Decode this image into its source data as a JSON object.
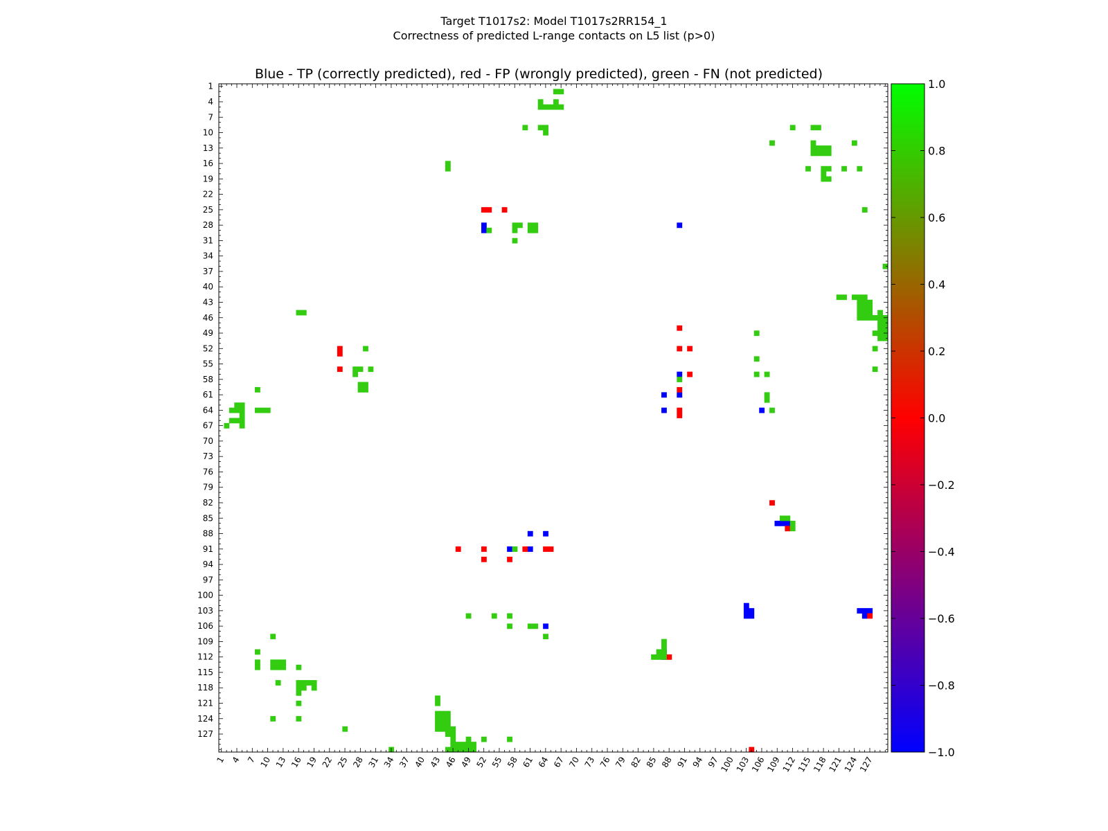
{
  "chart_data": {
    "type": "heatmap",
    "suptitle": [
      "Target T1017s2: Model T1017s2RR154_1",
      "Correctness of predicted L-range contacts on L5 list (p>0)"
    ],
    "title": "Blue - TP (correctly predicted), red - FP (wrongly predicted), green - FN (not predicted)",
    "xlabel": "",
    "ylabel": "",
    "xlim": [
      1,
      130
    ],
    "ylim": [
      1,
      130
    ],
    "x_ticks": [
      1,
      4,
      7,
      10,
      13,
      16,
      19,
      22,
      25,
      28,
      31,
      34,
      37,
      40,
      43,
      46,
      49,
      52,
      55,
      58,
      61,
      64,
      67,
      70,
      73,
      76,
      79,
      82,
      85,
      88,
      91,
      94,
      97,
      100,
      103,
      106,
      109,
      112,
      115,
      118,
      121,
      124,
      127
    ],
    "y_ticks": [
      1,
      4,
      7,
      10,
      13,
      16,
      19,
      22,
      25,
      28,
      31,
      34,
      37,
      40,
      43,
      46,
      49,
      52,
      55,
      58,
      61,
      64,
      67,
      70,
      73,
      76,
      79,
      82,
      85,
      88,
      91,
      94,
      97,
      100,
      103,
      106,
      109,
      112,
      115,
      118,
      121,
      124,
      127
    ],
    "colorbar": {
      "range": [
        -1.0,
        1.0
      ],
      "ticks": [
        "1.0",
        "0.8",
        "0.6",
        "0.4",
        "0.2",
        "0.0",
        "−0.2",
        "−0.4",
        "−0.6",
        "−0.8",
        "−1.0"
      ],
      "colors": [
        "#0000ff",
        "#ff0000",
        "#00ff00"
      ]
    },
    "category_colors": {
      "TP": "#0000ff",
      "FP": "#ff0000",
      "FN": "#33cc11"
    },
    "categories": [
      "TP",
      "FP",
      "FN"
    ],
    "cells": {
      "TP": [
        [
          28,
          52
        ],
        [
          28,
          90
        ],
        [
          29,
          52
        ],
        [
          57,
          90
        ],
        [
          61,
          87
        ],
        [
          61,
          90
        ],
        [
          64,
          87
        ],
        [
          64,
          106
        ],
        [
          86,
          109
        ],
        [
          86,
          110
        ],
        [
          86,
          111
        ],
        [
          88,
          61
        ],
        [
          88,
          64
        ],
        [
          91,
          57
        ],
        [
          91,
          61
        ],
        [
          102,
          103
        ],
        [
          103,
          103
        ],
        [
          103,
          104
        ],
        [
          104,
          103
        ],
        [
          104,
          104
        ],
        [
          103,
          125
        ],
        [
          103,
          126
        ],
        [
          103,
          127
        ],
        [
          104,
          126
        ],
        [
          106,
          64
        ],
        [
          111,
          87
        ],
        [
          112,
          87
        ]
      ],
      "FP": [
        [
          25,
          52
        ],
        [
          25,
          53
        ],
        [
          25,
          56
        ],
        [
          48,
          90
        ],
        [
          52,
          24
        ],
        [
          53,
          24
        ],
        [
          52,
          90
        ],
        [
          52,
          92
        ],
        [
          56,
          24
        ],
        [
          57,
          92
        ],
        [
          60,
          90
        ],
        [
          64,
          90
        ],
        [
          65,
          90
        ],
        [
          82,
          108
        ],
        [
          87,
          111
        ],
        [
          91,
          47
        ],
        [
          91,
          52
        ],
        [
          91,
          60
        ],
        [
          91,
          64
        ],
        [
          91,
          65
        ],
        [
          93,
          52
        ],
        [
          93,
          57
        ],
        [
          104,
          127
        ],
        [
          112,
          88
        ],
        [
          130,
          104
        ]
      ],
      "FN": [
        [
          2,
          66
        ],
        [
          2,
          67
        ],
        [
          4,
          63
        ],
        [
          4,
          66
        ],
        [
          5,
          63
        ],
        [
          5,
          64
        ],
        [
          5,
          65
        ],
        [
          5,
          66
        ],
        [
          5,
          67
        ],
        [
          9,
          60
        ],
        [
          9,
          63
        ],
        [
          9,
          64
        ],
        [
          10,
          64
        ],
        [
          9,
          112
        ],
        [
          9,
          116
        ],
        [
          9,
          117
        ],
        [
          12,
          108
        ],
        [
          12,
          124
        ],
        [
          12,
          116
        ],
        [
          13,
          116
        ],
        [
          13,
          117
        ],
        [
          13,
          118
        ],
        [
          13,
          119
        ],
        [
          14,
          116
        ],
        [
          14,
          117
        ],
        [
          14,
          118
        ],
        [
          14,
          119
        ],
        [
          16,
          45
        ],
        [
          17,
          45
        ],
        [
          17,
          115
        ],
        [
          17,
          118
        ],
        [
          17,
          119
        ],
        [
          17,
          122
        ],
        [
          17,
          125
        ],
        [
          18,
          118
        ],
        [
          19,
          118
        ],
        [
          19,
          119
        ],
        [
          25,
          126
        ],
        [
          28,
          58
        ],
        [
          28,
          59
        ],
        [
          28,
          61
        ],
        [
          28,
          62
        ],
        [
          29,
          53
        ],
        [
          29,
          58
        ],
        [
          29,
          61
        ],
        [
          29,
          62
        ],
        [
          31,
          58
        ],
        [
          36,
          130
        ],
        [
          42,
          121
        ],
        [
          42,
          122
        ],
        [
          42,
          124
        ],
        [
          42,
          125
        ],
        [
          42,
          126
        ],
        [
          43,
          125
        ],
        [
          43,
          126
        ],
        [
          43,
          127
        ],
        [
          44,
          125
        ],
        [
          44,
          126
        ],
        [
          44,
          127
        ],
        [
          45,
          16
        ],
        [
          45,
          17
        ],
        [
          45,
          125
        ],
        [
          45,
          126
        ],
        [
          45,
          127
        ],
        [
          45,
          129
        ],
        [
          46,
          125
        ],
        [
          46,
          126
        ],
        [
          46,
          127
        ],
        [
          46,
          128
        ],
        [
          46,
          129
        ],
        [
          46,
          130
        ],
        [
          47,
          129
        ],
        [
          47,
          130
        ],
        [
          48,
          129
        ],
        [
          48,
          130
        ],
        [
          49,
          105
        ],
        [
          49,
          128
        ],
        [
          49,
          129
        ],
        [
          49,
          130
        ],
        [
          50,
          129
        ],
        [
          50,
          130
        ],
        [
          52,
          29
        ],
        [
          52,
          128
        ],
        [
          54,
          105
        ],
        [
          56,
          27
        ],
        [
          56,
          28
        ],
        [
          56,
          30
        ],
        [
          56,
          128
        ],
        [
          57,
          27
        ],
        [
          57,
          105
        ],
        [
          57,
          107
        ],
        [
          58,
          90
        ],
        [
          59,
          28
        ],
        [
          59,
          29
        ],
        [
          60,
          28
        ],
        [
          60,
          29
        ],
        [
          60,
          8
        ],
        [
          61,
          107
        ],
        [
          62,
          107
        ],
        [
          63,
          4
        ],
        [
          63,
          5
        ],
        [
          64,
          3
        ],
        [
          64,
          4
        ],
        [
          64,
          5
        ],
        [
          64,
          8
        ],
        [
          64,
          9
        ],
        [
          64,
          10
        ],
        [
          64,
          108
        ],
        [
          65,
          5
        ],
        [
          66,
          3
        ],
        [
          66,
          4
        ],
        [
          66,
          5
        ],
        [
          67,
          2
        ],
        [
          67,
          5
        ],
        [
          85,
          110
        ],
        [
          85,
          111
        ],
        [
          86,
          112
        ],
        [
          87,
          112
        ],
        [
          91,
          58
        ],
        [
          104,
          49
        ],
        [
          104,
          54
        ],
        [
          104,
          57
        ],
        [
          106,
          57
        ],
        [
          106,
          61
        ],
        [
          106,
          62
        ],
        [
          108,
          11
        ],
        [
          108,
          64
        ],
        [
          109,
          87
        ],
        [
          110,
          87
        ],
        [
          111,
          8
        ],
        [
          111,
          86
        ],
        [
          111,
          87
        ],
        [
          112,
          85
        ],
        [
          112,
          86
        ],
        [
          112,
          87
        ],
        [
          113,
          8
        ],
        [
          113,
          11
        ],
        [
          113,
          12
        ],
        [
          113,
          13
        ],
        [
          114,
          8
        ],
        [
          114,
          11
        ],
        [
          114,
          12
        ],
        [
          114,
          13
        ],
        [
          114,
          16
        ],
        [
          117,
          12
        ],
        [
          117,
          16
        ],
        [
          117,
          17
        ],
        [
          117,
          18
        ],
        [
          117,
          19
        ],
        [
          118,
          16
        ],
        [
          118,
          17
        ],
        [
          118,
          19
        ],
        [
          119,
          16
        ],
        [
          120,
          43
        ],
        [
          121,
          16
        ],
        [
          121,
          43
        ],
        [
          123,
          43
        ],
        [
          123,
          44
        ],
        [
          123,
          45
        ],
        [
          124,
          11
        ],
        [
          124,
          16
        ],
        [
          124,
          43
        ],
        [
          124,
          44
        ],
        [
          124,
          45
        ],
        [
          125,
          43
        ],
        [
          125,
          44
        ],
        [
          125,
          45
        ],
        [
          126,
          25
        ],
        [
          126,
          43
        ],
        [
          126,
          44
        ],
        [
          126,
          45
        ],
        [
          126,
          46
        ],
        [
          127,
          45
        ],
        [
          127,
          46
        ],
        [
          128,
          46
        ],
        [
          128,
          49
        ],
        [
          128,
          52
        ],
        [
          128,
          57
        ],
        [
          129,
          46
        ],
        [
          129,
          47
        ],
        [
          129,
          48
        ],
        [
          129,
          49
        ],
        [
          129,
          50
        ],
        [
          130,
          34
        ],
        [
          130,
          45
        ],
        [
          130,
          46
        ],
        [
          130,
          47
        ],
        [
          130,
          48
        ],
        [
          130,
          49
        ],
        [
          130,
          50
        ]
      ]
    }
  }
}
